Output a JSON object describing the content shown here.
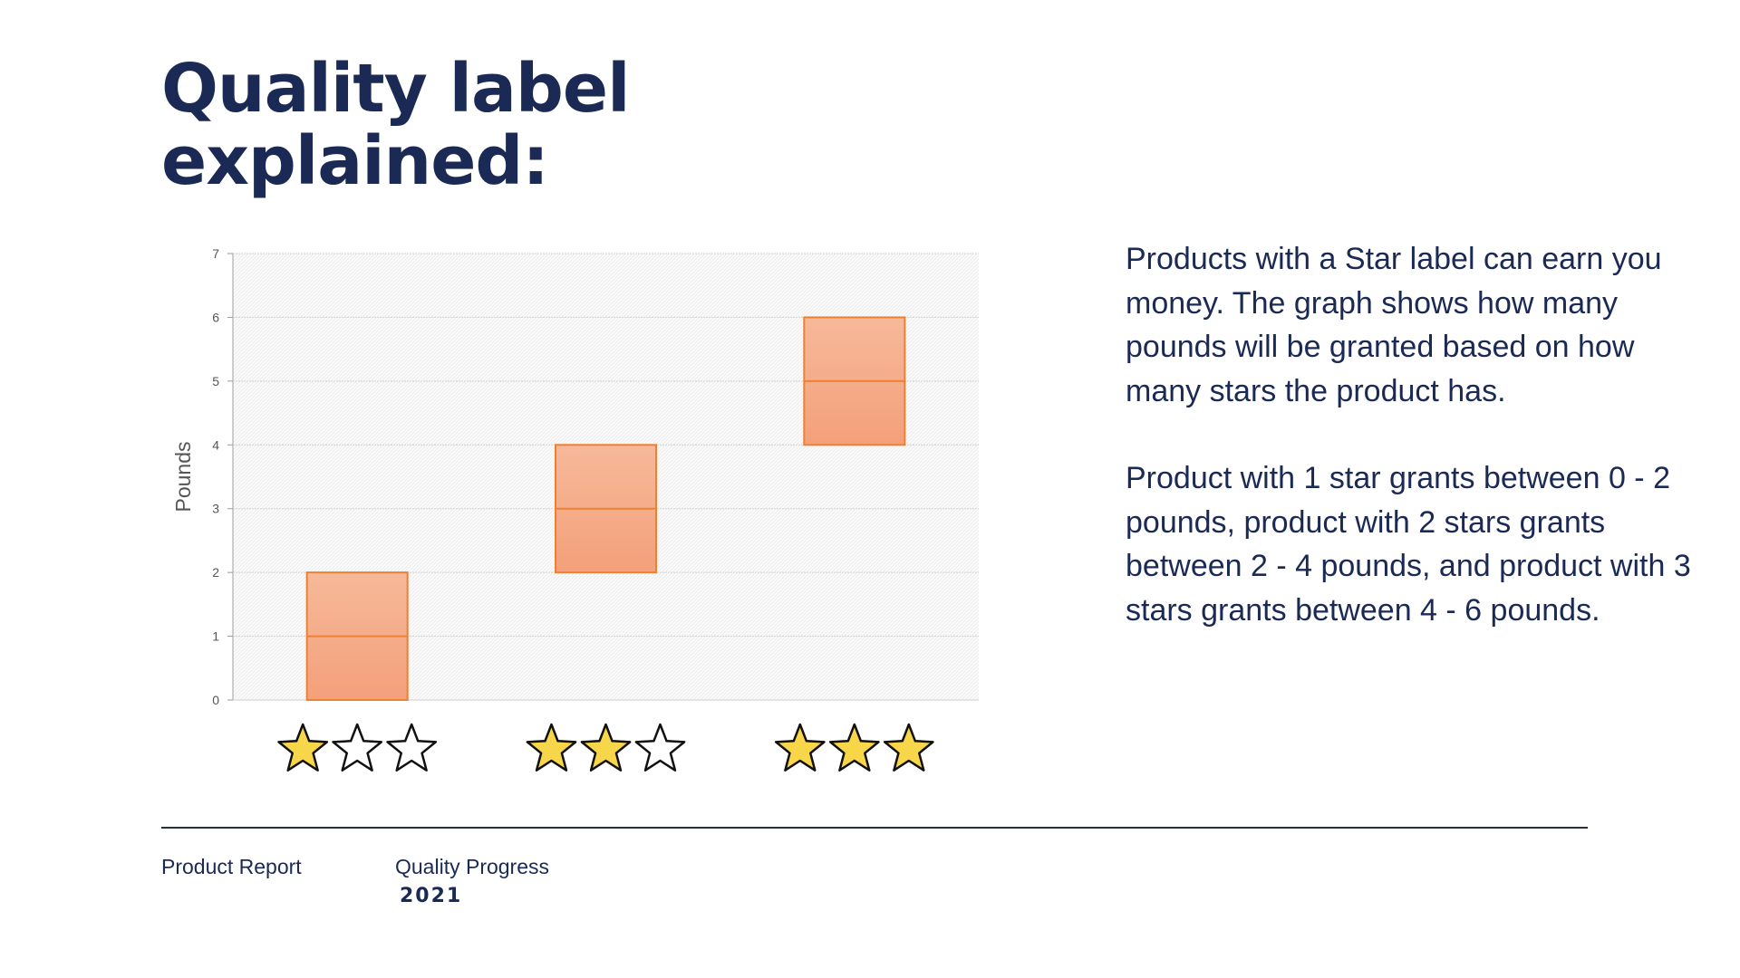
{
  "slide": {
    "title_line1": "Quality label",
    "title_line2": "explained:",
    "description": [
      "Products with a Star label can earn you money. The graph shows how many pounds will be granted based on how many stars the product has.",
      "Product with 1 star grants between 0 - 2 pounds, product with 2 stars grants between 2 - 4 pounds, and product with 3 stars grants between 4 - 6 pounds."
    ],
    "footer": {
      "report_label": "Product Report",
      "progress_label": "Quality Progress",
      "year": "2021"
    }
  },
  "colors": {
    "text": "#1b2a55",
    "box_fill_top": "#f6b99a",
    "box_fill_bottom": "#f4a07a",
    "box_stroke": "#ee8033",
    "star_filled": "#f7d64a",
    "star_empty": "#ffffff",
    "star_stroke": "#111111",
    "grid": "#cfcfcf",
    "axis_text": "#555555"
  },
  "chart_data": {
    "type": "box",
    "title": "",
    "xlabel": "",
    "ylabel": "Pounds",
    "ylim": [
      0,
      7
    ],
    "yticks": [
      0,
      1,
      2,
      3,
      4,
      5,
      6,
      7
    ],
    "grid": true,
    "categories": [
      {
        "stars_filled": 1,
        "stars_total": 3
      },
      {
        "stars_filled": 2,
        "stars_total": 3
      },
      {
        "stars_filled": 3,
        "stars_total": 3
      }
    ],
    "boxes": [
      {
        "low": 0,
        "mid": 1,
        "high": 2
      },
      {
        "low": 2,
        "mid": 3,
        "high": 4
      },
      {
        "low": 4,
        "mid": 5,
        "high": 6
      }
    ]
  }
}
